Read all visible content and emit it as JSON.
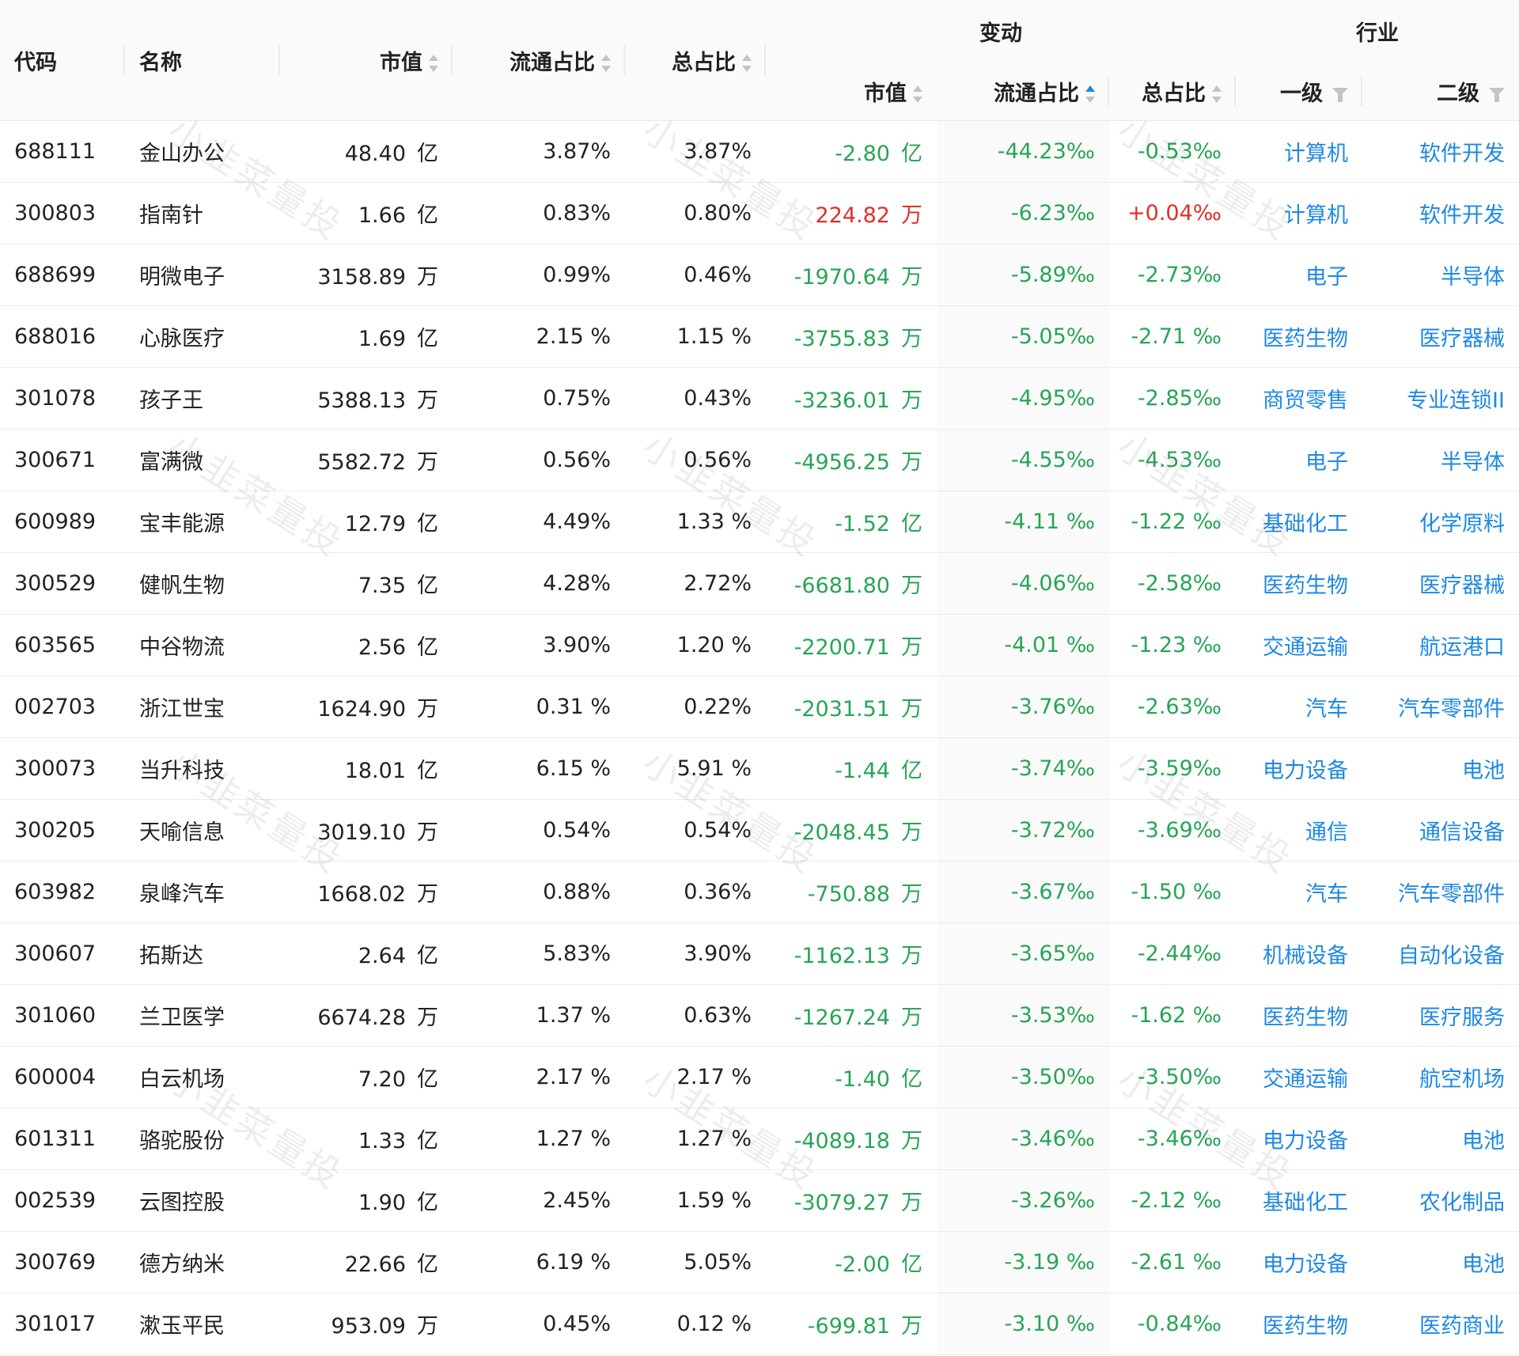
{
  "header": {
    "code": "代码",
    "name": "名称",
    "market_value": "市值",
    "float_ratio": "流通占比",
    "total_ratio": "总占比",
    "change_group": "变动",
    "industry_group": "行业",
    "chg_market_value": "市值",
    "chg_float_ratio": "流通占比",
    "chg_total_ratio": "总占比",
    "ind_level1": "一级",
    "ind_level2": "二级"
  },
  "watermark": "小韭菜量投",
  "colors": {
    "green": "#27a556",
    "red": "#e0302b",
    "blue": "#1e88e5",
    "sort_active": "#1e88e5"
  },
  "icons": [
    "sort-icon",
    "filter-icon"
  ],
  "rows": [
    {
      "code": "688111",
      "name": "金山办公",
      "mv": "48.40",
      "mv_unit": "亿",
      "float": "3.87%",
      "total": "3.87%",
      "chg_mv": "-2.80",
      "chg_mv_unit": "亿",
      "chg_float": "-44.23‰",
      "chg_total": "-0.53‰",
      "ind1": "计算机",
      "ind2": "软件开发",
      "mv_red": false,
      "total_red": false
    },
    {
      "code": "300803",
      "name": "指南针",
      "mv": "1.66",
      "mv_unit": "亿",
      "float": "0.83%",
      "total": "0.80%",
      "chg_mv": "224.82",
      "chg_mv_unit": "万",
      "chg_float": "-6.23‰",
      "chg_total": "+0.04‰",
      "ind1": "计算机",
      "ind2": "软件开发",
      "mv_red": true,
      "total_red": true
    },
    {
      "code": "688699",
      "name": "明微电子",
      "mv": "3158.89",
      "mv_unit": "万",
      "float": "0.99%",
      "total": "0.46%",
      "chg_mv": "-1970.64",
      "chg_mv_unit": "万",
      "chg_float": "-5.89‰",
      "chg_total": "-2.73‰",
      "ind1": "电子",
      "ind2": "半导体",
      "mv_red": false,
      "total_red": false
    },
    {
      "code": "688016",
      "name": "心脉医疗",
      "mv": "1.69",
      "mv_unit": "亿",
      "float": "2.15 %",
      "total": "1.15 %",
      "chg_mv": "-3755.83",
      "chg_mv_unit": "万",
      "chg_float": "-5.05‰",
      "chg_total": "-2.71 ‰",
      "ind1": "医药生物",
      "ind2": "医疗器械",
      "mv_red": false,
      "total_red": false
    },
    {
      "code": "301078",
      "name": "孩子王",
      "mv": "5388.13",
      "mv_unit": "万",
      "float": "0.75%",
      "total": "0.43%",
      "chg_mv": "-3236.01",
      "chg_mv_unit": "万",
      "chg_float": "-4.95‰",
      "chg_total": "-2.85‰",
      "ind1": "商贸零售",
      "ind2": "专业连锁II",
      "mv_red": false,
      "total_red": false
    },
    {
      "code": "300671",
      "name": "富满微",
      "mv": "5582.72",
      "mv_unit": "万",
      "float": "0.56%",
      "total": "0.56%",
      "chg_mv": "-4956.25",
      "chg_mv_unit": "万",
      "chg_float": "-4.55‰",
      "chg_total": "-4.53‰",
      "ind1": "电子",
      "ind2": "半导体",
      "mv_red": false,
      "total_red": false
    },
    {
      "code": "600989",
      "name": "宝丰能源",
      "mv": "12.79",
      "mv_unit": "亿",
      "float": "4.49%",
      "total": "1.33 %",
      "chg_mv": "-1.52",
      "chg_mv_unit": "亿",
      "chg_float": "-4.11 ‰",
      "chg_total": "-1.22 ‰",
      "ind1": "基础化工",
      "ind2": "化学原料",
      "mv_red": false,
      "total_red": false
    },
    {
      "code": "300529",
      "name": "健帆生物",
      "mv": "7.35",
      "mv_unit": "亿",
      "float": "4.28%",
      "total": "2.72%",
      "chg_mv": "-6681.80",
      "chg_mv_unit": "万",
      "chg_float": "-4.06‰",
      "chg_total": "-2.58‰",
      "ind1": "医药生物",
      "ind2": "医疗器械",
      "mv_red": false,
      "total_red": false
    },
    {
      "code": "603565",
      "name": "中谷物流",
      "mv": "2.56",
      "mv_unit": "亿",
      "float": "3.90%",
      "total": "1.20 %",
      "chg_mv": "-2200.71",
      "chg_mv_unit": "万",
      "chg_float": "-4.01 ‰",
      "chg_total": "-1.23 ‰",
      "ind1": "交通运输",
      "ind2": "航运港口",
      "mv_red": false,
      "total_red": false
    },
    {
      "code": "002703",
      "name": "浙江世宝",
      "mv": "1624.90",
      "mv_unit": "万",
      "float": "0.31 %",
      "total": "0.22%",
      "chg_mv": "-2031.51",
      "chg_mv_unit": "万",
      "chg_float": "-3.76‰",
      "chg_total": "-2.63‰",
      "ind1": "汽车",
      "ind2": "汽车零部件",
      "mv_red": false,
      "total_red": false
    },
    {
      "code": "300073",
      "name": "当升科技",
      "mv": "18.01",
      "mv_unit": "亿",
      "float": "6.15 %",
      "total": "5.91 %",
      "chg_mv": "-1.44",
      "chg_mv_unit": "亿",
      "chg_float": "-3.74‰",
      "chg_total": "-3.59‰",
      "ind1": "电力设备",
      "ind2": "电池",
      "mv_red": false,
      "total_red": false
    },
    {
      "code": "300205",
      "name": "天喻信息",
      "mv": "3019.10",
      "mv_unit": "万",
      "float": "0.54%",
      "total": "0.54%",
      "chg_mv": "-2048.45",
      "chg_mv_unit": "万",
      "chg_float": "-3.72‰",
      "chg_total": "-3.69‰",
      "ind1": "通信",
      "ind2": "通信设备",
      "mv_red": false,
      "total_red": false
    },
    {
      "code": "603982",
      "name": "泉峰汽车",
      "mv": "1668.02",
      "mv_unit": "万",
      "float": "0.88%",
      "total": "0.36%",
      "chg_mv": "-750.88",
      "chg_mv_unit": "万",
      "chg_float": "-3.67‰",
      "chg_total": "-1.50 ‰",
      "ind1": "汽车",
      "ind2": "汽车零部件",
      "mv_red": false,
      "total_red": false
    },
    {
      "code": "300607",
      "name": "拓斯达",
      "mv": "2.64",
      "mv_unit": "亿",
      "float": "5.83%",
      "total": "3.90%",
      "chg_mv": "-1162.13",
      "chg_mv_unit": "万",
      "chg_float": "-3.65‰",
      "chg_total": "-2.44‰",
      "ind1": "机械设备",
      "ind2": "自动化设备",
      "mv_red": false,
      "total_red": false
    },
    {
      "code": "301060",
      "name": "兰卫医学",
      "mv": "6674.28",
      "mv_unit": "万",
      "float": "1.37 %",
      "total": "0.63%",
      "chg_mv": "-1267.24",
      "chg_mv_unit": "万",
      "chg_float": "-3.53‰",
      "chg_total": "-1.62 ‰",
      "ind1": "医药生物",
      "ind2": "医疗服务",
      "mv_red": false,
      "total_red": false
    },
    {
      "code": "600004",
      "name": "白云机场",
      "mv": "7.20",
      "mv_unit": "亿",
      "float": "2.17 %",
      "total": "2.17 %",
      "chg_mv": "-1.40",
      "chg_mv_unit": "亿",
      "chg_float": "-3.50‰",
      "chg_total": "-3.50‰",
      "ind1": "交通运输",
      "ind2": "航空机场",
      "mv_red": false,
      "total_red": false
    },
    {
      "code": "601311",
      "name": "骆驼股份",
      "mv": "1.33",
      "mv_unit": "亿",
      "float": "1.27 %",
      "total": "1.27 %",
      "chg_mv": "-4089.18",
      "chg_mv_unit": "万",
      "chg_float": "-3.46‰",
      "chg_total": "-3.46‰",
      "ind1": "电力设备",
      "ind2": "电池",
      "mv_red": false,
      "total_red": false
    },
    {
      "code": "002539",
      "name": "云图控股",
      "mv": "1.90",
      "mv_unit": "亿",
      "float": "2.45%",
      "total": "1.59 %",
      "chg_mv": "-3079.27",
      "chg_mv_unit": "万",
      "chg_float": "-3.26‰",
      "chg_total": "-2.12 ‰",
      "ind1": "基础化工",
      "ind2": "农化制品",
      "mv_red": false,
      "total_red": false
    },
    {
      "code": "300769",
      "name": "德方纳米",
      "mv": "22.66",
      "mv_unit": "亿",
      "float": "6.19 %",
      "total": "5.05%",
      "chg_mv": "-2.00",
      "chg_mv_unit": "亿",
      "chg_float": "-3.19 ‰",
      "chg_total": "-2.61 ‰",
      "ind1": "电力设备",
      "ind2": "电池",
      "mv_red": false,
      "total_red": false
    },
    {
      "code": "301017",
      "name": "漱玉平民",
      "mv": "953.09",
      "mv_unit": "万",
      "float": "0.45%",
      "total": "0.12 %",
      "chg_mv": "-699.81",
      "chg_mv_unit": "万",
      "chg_float": "-3.10 ‰",
      "chg_total": "-0.84‰",
      "ind1": "医药生物",
      "ind2": "医药商业",
      "mv_red": false,
      "total_red": false
    }
  ]
}
